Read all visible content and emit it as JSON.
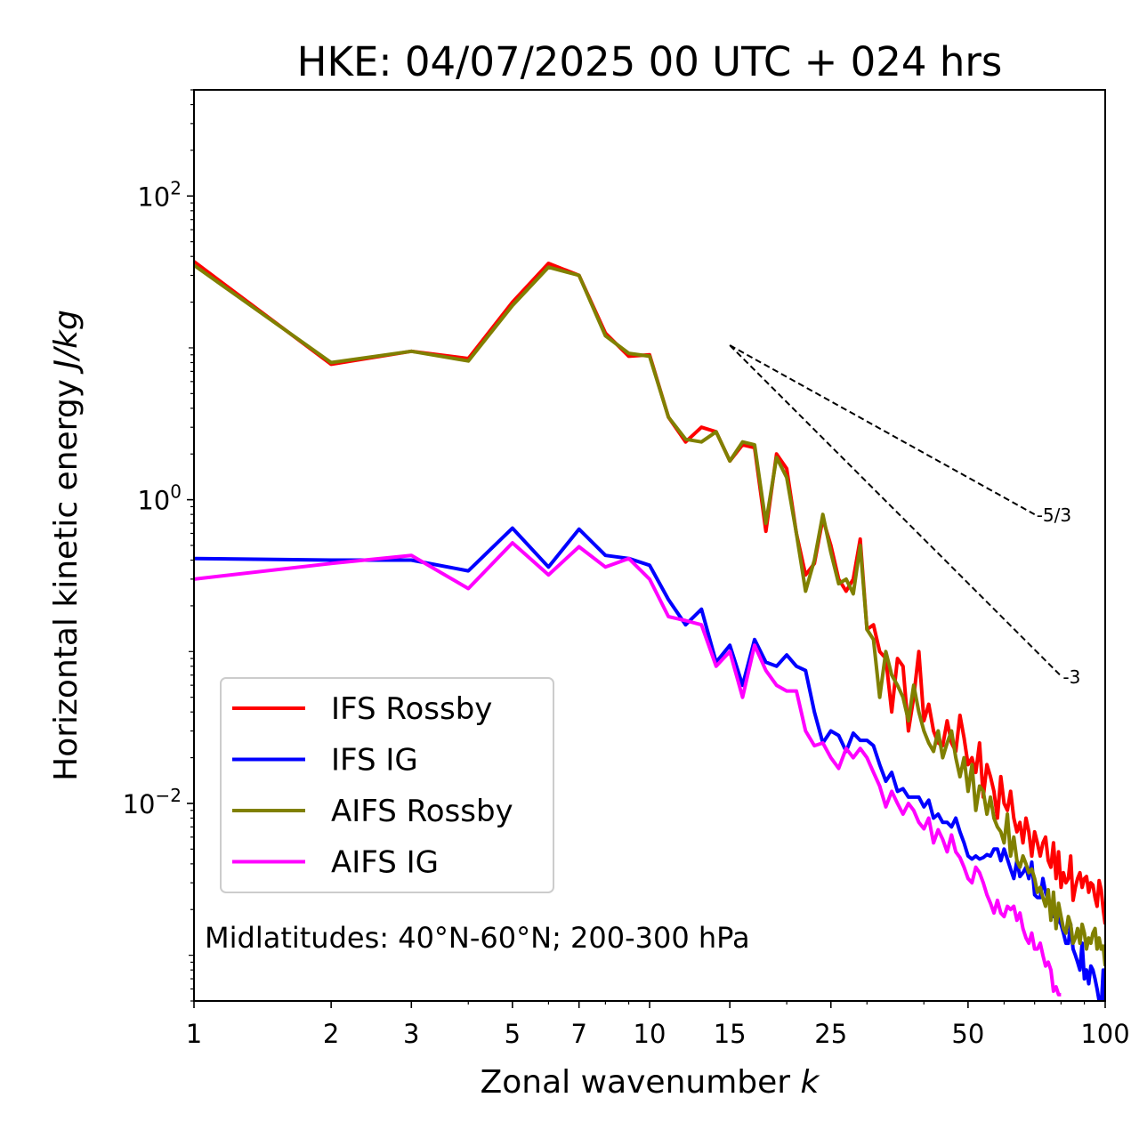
{
  "chart_data": {
    "type": "line",
    "title": "HKE: 04/07/2025 00 UTC + 024 hrs",
    "xlabel_text": "Zonal wavenumber ",
    "xlabel_var": "k",
    "ylabel_text": "Horizontal kinetic energy ",
    "ylabel_var": "J/kg",
    "xscale": "log",
    "yscale": "log",
    "xlim": [
      1,
      100
    ],
    "ylim": [
      0.0005,
      500
    ],
    "xticks": [
      {
        "value": 1,
        "label": "1"
      },
      {
        "value": 2,
        "label": "2"
      },
      {
        "value": 3,
        "label": "3"
      },
      {
        "value": 5,
        "label": "5"
      },
      {
        "value": 7,
        "label": "7"
      },
      {
        "value": 10,
        "label": "10"
      },
      {
        "value": 15,
        "label": "15"
      },
      {
        "value": 25,
        "label": "25"
      },
      {
        "value": 50,
        "label": "50"
      },
      {
        "value": 100,
        "label": "100"
      }
    ],
    "yticks": [
      {
        "value": 100,
        "mant": "10",
        "exp": "2"
      },
      {
        "value": 1,
        "mant": "10",
        "exp": "0"
      },
      {
        "value": 0.01,
        "mant": "10",
        "exp": "−2"
      }
    ],
    "annotation": "Midlatitudes: 40°N-60°N; 200-300 hPa",
    "legend_position": "lower-left",
    "reference_slopes": [
      {
        "label": "-5/3",
        "x0": 15,
        "y0": 10.4,
        "x1": 70,
        "y1": 0.8
      },
      {
        "label": "-3",
        "x0": 15,
        "y0": 10.4,
        "x1": 80,
        "y1": 0.069
      }
    ],
    "series": [
      {
        "name": "IFS Rossby",
        "color": "#ff0000",
        "x": [
          1,
          2,
          3,
          4,
          5,
          6,
          7,
          8,
          9,
          10,
          11,
          12,
          13,
          14,
          15,
          16,
          17,
          18,
          19,
          20,
          21,
          22,
          23,
          24,
          25,
          26,
          27,
          28,
          29,
          30,
          31,
          32,
          33,
          34,
          35,
          36,
          37,
          38,
          39,
          40,
          41,
          42,
          43,
          44,
          45,
          46,
          47,
          48,
          49,
          50,
          51,
          52,
          53,
          54,
          55,
          56,
          57,
          58,
          59,
          60,
          61,
          62,
          63,
          64,
          65,
          66,
          67,
          68,
          69,
          70,
          71,
          72,
          73,
          74,
          75,
          76,
          77,
          78,
          79,
          80,
          81,
          82,
          83,
          84,
          85,
          86,
          87,
          88,
          89,
          90,
          91,
          92,
          93,
          94,
          95,
          96,
          97,
          98,
          99,
          100
        ],
        "y": [
          37,
          7.8,
          9.5,
          8.5,
          20,
          36,
          30,
          12.5,
          8.8,
          9.0,
          3.5,
          2.4,
          3.0,
          2.8,
          1.8,
          2.3,
          2.2,
          0.62,
          2.0,
          1.6,
          0.6,
          0.32,
          0.38,
          0.75,
          0.5,
          0.3,
          0.25,
          0.3,
          0.55,
          0.14,
          0.15,
          0.1,
          0.09,
          0.04,
          0.09,
          0.08,
          0.03,
          0.05,
          0.1,
          0.035,
          0.045,
          0.03,
          0.025,
          0.024,
          0.035,
          0.025,
          0.022,
          0.038,
          0.027,
          0.018,
          0.02,
          0.016,
          0.025,
          0.011,
          0.018,
          0.015,
          0.012,
          0.008,
          0.015,
          0.01,
          0.009,
          0.012,
          0.008,
          0.0065,
          0.0075,
          0.0055,
          0.008,
          0.0065,
          0.0045,
          0.0065,
          0.0055,
          0.0045,
          0.0055,
          0.006,
          0.0042,
          0.0038,
          0.0055,
          0.0032,
          0.0048,
          0.0028,
          0.0035,
          0.003,
          0.0032,
          0.0045,
          0.0023,
          0.0028,
          0.0032,
          0.0035,
          0.0028,
          0.0032,
          0.0033,
          0.0026,
          0.003,
          0.0029,
          0.0024,
          0.0021,
          0.0031,
          0.0027,
          0.002,
          0.0016
        ]
      },
      {
        "name": "IFS IG",
        "color": "#0000ff",
        "x": [
          1,
          2,
          3,
          4,
          5,
          6,
          7,
          8,
          9,
          10,
          11,
          12,
          13,
          14,
          15,
          16,
          17,
          18,
          19,
          20,
          21,
          22,
          23,
          24,
          25,
          26,
          27,
          28,
          29,
          30,
          31,
          32,
          33,
          34,
          35,
          36,
          37,
          38,
          39,
          40,
          41,
          42,
          43,
          44,
          45,
          46,
          47,
          48,
          49,
          50,
          51,
          52,
          53,
          54,
          55,
          56,
          57,
          58,
          59,
          60,
          61,
          62,
          63,
          64,
          65,
          66,
          67,
          68,
          69,
          70,
          71,
          72,
          73,
          74,
          75,
          76,
          77,
          78,
          79,
          80,
          81,
          82,
          83,
          84,
          85,
          86,
          87,
          88,
          89,
          90,
          91,
          92,
          93,
          94,
          95,
          96,
          97,
          98,
          99,
          100
        ],
        "y": [
          0.41,
          0.4,
          0.4,
          0.34,
          0.65,
          0.36,
          0.64,
          0.43,
          0.41,
          0.37,
          0.22,
          0.15,
          0.19,
          0.085,
          0.11,
          0.06,
          0.12,
          0.085,
          0.08,
          0.095,
          0.08,
          0.075,
          0.04,
          0.025,
          0.03,
          0.028,
          0.022,
          0.029,
          0.026,
          0.026,
          0.024,
          0.018,
          0.014,
          0.016,
          0.012,
          0.0125,
          0.011,
          0.011,
          0.011,
          0.0095,
          0.0105,
          0.008,
          0.0085,
          0.0075,
          0.0075,
          0.007,
          0.008,
          0.0065,
          0.0055,
          0.0045,
          0.0043,
          0.0045,
          0.0043,
          0.0044,
          0.0046,
          0.0045,
          0.005,
          0.005,
          0.0042,
          0.005,
          0.0043,
          0.0037,
          0.0032,
          0.0042,
          0.0033,
          0.0035,
          0.0038,
          0.0032,
          0.0041,
          0.0025,
          0.0024,
          0.0024,
          0.0032,
          0.0026,
          0.0023,
          0.0022,
          0.0018,
          0.0019,
          0.0017,
          0.0016,
          0.0014,
          0.0012,
          0.0012,
          0.0016,
          0.0011,
          0.001,
          0.0009,
          0.0008,
          0.0012,
          0.0007,
          0.0008,
          0.00065,
          0.00085,
          0.0008,
          0.0007,
          0.0006,
          0.0005,
          0.00045,
          0.0008,
          0.0005
        ]
      },
      {
        "name": "AIFS Rossby",
        "color": "#808000",
        "x": [
          1,
          2,
          3,
          4,
          5,
          6,
          7,
          8,
          9,
          10,
          11,
          12,
          13,
          14,
          15,
          16,
          17,
          18,
          19,
          20,
          21,
          22,
          23,
          24,
          25,
          26,
          27,
          28,
          29,
          30,
          31,
          32,
          33,
          34,
          35,
          36,
          37,
          38,
          39,
          40,
          41,
          42,
          43,
          44,
          45,
          46,
          47,
          48,
          49,
          50,
          51,
          52,
          53,
          54,
          55,
          56,
          57,
          58,
          59,
          60,
          61,
          62,
          63,
          64,
          65,
          66,
          67,
          68,
          69,
          70,
          71,
          72,
          73,
          74,
          75,
          76,
          77,
          78,
          79,
          80,
          81,
          82,
          83,
          84,
          85,
          86,
          87,
          88,
          89,
          90,
          91,
          92,
          93,
          94,
          95,
          96,
          97,
          98,
          99,
          100
        ],
        "y": [
          35,
          8.0,
          9.5,
          8.2,
          19,
          34,
          30,
          12,
          9.2,
          8.8,
          3.5,
          2.5,
          2.4,
          2.8,
          1.8,
          2.4,
          2.3,
          0.7,
          1.9,
          1.4,
          0.6,
          0.25,
          0.4,
          0.8,
          0.45,
          0.28,
          0.3,
          0.24,
          0.5,
          0.14,
          0.12,
          0.05,
          0.1,
          0.07,
          0.06,
          0.05,
          0.035,
          0.06,
          0.04,
          0.03,
          0.025,
          0.022,
          0.03,
          0.02,
          0.025,
          0.03,
          0.02,
          0.015,
          0.02,
          0.012,
          0.018,
          0.009,
          0.013,
          0.012,
          0.0085,
          0.011,
          0.008,
          0.007,
          0.0065,
          0.0055,
          0.0085,
          0.0045,
          0.006,
          0.0042,
          0.0038,
          0.0045,
          0.004,
          0.0035,
          0.0037,
          0.0032,
          0.0026,
          0.0028,
          0.0024,
          0.0021,
          0.0027,
          0.0017,
          0.0026,
          0.0015,
          0.0022,
          0.0018,
          0.0015,
          0.0014,
          0.0018,
          0.0016,
          0.0012,
          0.0013,
          0.0015,
          0.0012,
          0.0016,
          0.0014,
          0.0011,
          0.0013,
          0.0012,
          0.0014,
          0.0015,
          0.0011,
          0.0013,
          0.0011,
          0.00115,
          0.00085
        ]
      },
      {
        "name": "AIFS IG",
        "color": "#ff00ff",
        "x": [
          1,
          2,
          3,
          4,
          5,
          6,
          7,
          8,
          9,
          10,
          11,
          12,
          13,
          14,
          15,
          16,
          17,
          18,
          19,
          20,
          21,
          22,
          23,
          24,
          25,
          26,
          27,
          28,
          29,
          30,
          31,
          32,
          33,
          34,
          35,
          36,
          37,
          38,
          39,
          40,
          41,
          42,
          43,
          44,
          45,
          46,
          47,
          48,
          49,
          50,
          51,
          52,
          53,
          54,
          55,
          56,
          57,
          58,
          59,
          60,
          61,
          62,
          63,
          64,
          65,
          66,
          67,
          68,
          69,
          70,
          71,
          72,
          73,
          74,
          75,
          76,
          77,
          78,
          79,
          80
        ],
        "y": [
          0.3,
          0.38,
          0.43,
          0.26,
          0.52,
          0.32,
          0.49,
          0.36,
          0.41,
          0.3,
          0.17,
          0.16,
          0.15,
          0.08,
          0.1,
          0.05,
          0.11,
          0.075,
          0.06,
          0.055,
          0.055,
          0.03,
          0.024,
          0.025,
          0.02,
          0.017,
          0.023,
          0.02,
          0.023,
          0.02,
          0.016,
          0.013,
          0.0095,
          0.012,
          0.01,
          0.0085,
          0.01,
          0.009,
          0.0075,
          0.0068,
          0.008,
          0.0055,
          0.0067,
          0.0058,
          0.0048,
          0.0062,
          0.0048,
          0.0044,
          0.0038,
          0.0032,
          0.003,
          0.0038,
          0.0035,
          0.003,
          0.0025,
          0.0022,
          0.0019,
          0.0023,
          0.0019,
          0.0018,
          0.0021,
          0.002,
          0.0021,
          0.0017,
          0.0019,
          0.0015,
          0.0013,
          0.0012,
          0.0014,
          0.0011,
          0.0011,
          0.0012,
          0.001,
          0.00085,
          0.0009,
          0.0008,
          0.00058,
          0.00062,
          0.00055,
          0.00055
        ]
      }
    ]
  }
}
